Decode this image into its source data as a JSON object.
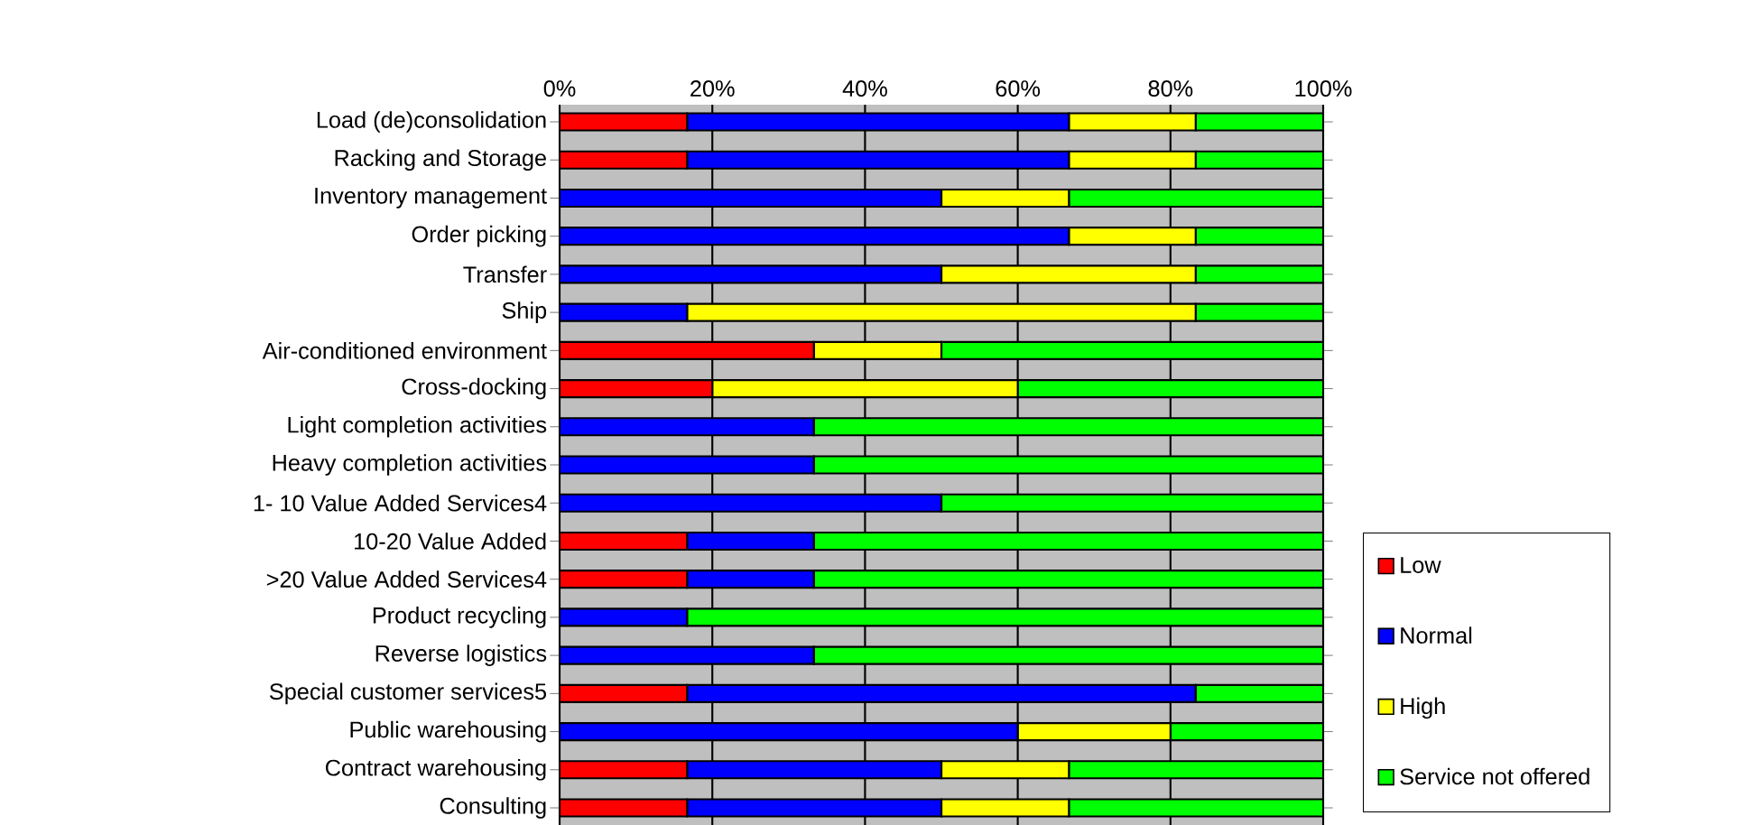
{
  "chart_data": {
    "type": "bar",
    "orientation": "horizontal",
    "stacked": true,
    "categories": [
      "Load (de)consolidation",
      "Racking and Storage",
      "Inventory management",
      "Order picking",
      "Transfer",
      "Ship",
      "Air-conditioned environment",
      "Cross-docking",
      "Light completion activities",
      "Heavy completion activities",
      "1- 10 Value Added Services4",
      "10-20 Value Added",
      ">20 Value Added Services4",
      "Product recycling",
      "Reverse logistics",
      "Special customer services5",
      "Public warehousing",
      "Contract warehousing",
      "Consulting"
    ],
    "series": [
      {
        "name": "Low",
        "color": "#ff0000",
        "values": [
          16.7,
          16.7,
          0,
          0,
          0,
          0,
          33.3,
          20,
          0,
          0,
          0,
          16.7,
          16.7,
          0,
          0,
          16.7,
          0,
          16.7,
          16.7
        ]
      },
      {
        "name": "Normal",
        "color": "#0000ff",
        "values": [
          50,
          50,
          50,
          66.7,
          50,
          16.7,
          0,
          0,
          33.3,
          33.3,
          50,
          16.6,
          16.6,
          16.7,
          33.3,
          66.6,
          60,
          33.3,
          33.3
        ]
      },
      {
        "name": "High",
        "color": "#ffff00",
        "values": [
          16.6,
          16.6,
          16.7,
          16.6,
          33.3,
          66.6,
          16.7,
          40,
          0,
          0,
          0,
          0,
          0,
          0,
          0,
          0,
          20,
          16.7,
          16.7
        ]
      },
      {
        "name": "Service not offered",
        "color": "#00ff00",
        "values": [
          16.7,
          16.7,
          33.3,
          16.7,
          16.7,
          16.7,
          50,
          40,
          66.7,
          66.7,
          50,
          66.7,
          66.7,
          83.3,
          66.7,
          16.7,
          20,
          33.3,
          33.3
        ]
      }
    ],
    "xlim": [
      0,
      100
    ],
    "xticks": [
      {
        "value": 0,
        "label": "0%"
      },
      {
        "value": 20,
        "label": "20%"
      },
      {
        "value": 40,
        "label": "40%"
      },
      {
        "value": 60,
        "label": "60%"
      },
      {
        "value": 80,
        "label": "80%"
      },
      {
        "value": 100,
        "label": "100%"
      }
    ],
    "grid": "x",
    "legend": "right"
  }
}
